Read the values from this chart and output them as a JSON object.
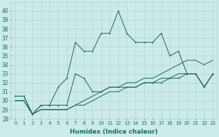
{
  "xlabel": "Humidex (Indice chaleur)",
  "ylabel": "",
  "bg_color": "#cceaea",
  "grid_color": "#aad0d0",
  "line_color": "#1a6b5a",
  "x": [
    0,
    1,
    2,
    3,
    4,
    5,
    6,
    7,
    8,
    9,
    10,
    11,
    12,
    13,
    14,
    15,
    16,
    17,
    18,
    19,
    20,
    21,
    22,
    23
  ],
  "series1": [
    30.5,
    30.5,
    28.5,
    29.5,
    29.5,
    31.5,
    32.5,
    36.5,
    35.5,
    35.5,
    37.5,
    37.5,
    40.0,
    37.5,
    36.5,
    36.5,
    36.5,
    37.5,
    35.0,
    35.5,
    33.0,
    33.0,
    31.5,
    33.0
  ],
  "series2": [
    30.5,
    30.5,
    28.5,
    29.5,
    29.5,
    29.5,
    29.5,
    33.0,
    32.5,
    31.0,
    31.0,
    31.5,
    31.5,
    31.5,
    31.5,
    32.0,
    32.0,
    32.0,
    32.5,
    32.5,
    33.0,
    33.0,
    31.5,
    33.0
  ],
  "series3": [
    30.0,
    30.0,
    28.5,
    29.0,
    29.0,
    29.0,
    29.0,
    29.5,
    30.0,
    30.5,
    31.0,
    31.5,
    31.5,
    32.0,
    32.0,
    32.5,
    32.5,
    33.0,
    33.5,
    34.0,
    34.5,
    34.5,
    34.0,
    34.5
  ],
  "series4": [
    30.0,
    30.0,
    28.5,
    29.0,
    29.0,
    29.0,
    29.0,
    29.5,
    29.5,
    30.0,
    30.5,
    31.0,
    31.0,
    31.5,
    31.5,
    32.0,
    32.0,
    32.5,
    32.5,
    33.0,
    33.0,
    33.0,
    31.5,
    33.0
  ],
  "ylim": [
    28,
    41
  ],
  "yticks": [
    28,
    29,
    30,
    31,
    32,
    33,
    34,
    35,
    36,
    37,
    38,
    39,
    40
  ],
  "xtick_fontsize": 5.0,
  "ytick_fontsize": 5.5,
  "xlabel_fontsize": 6.5
}
